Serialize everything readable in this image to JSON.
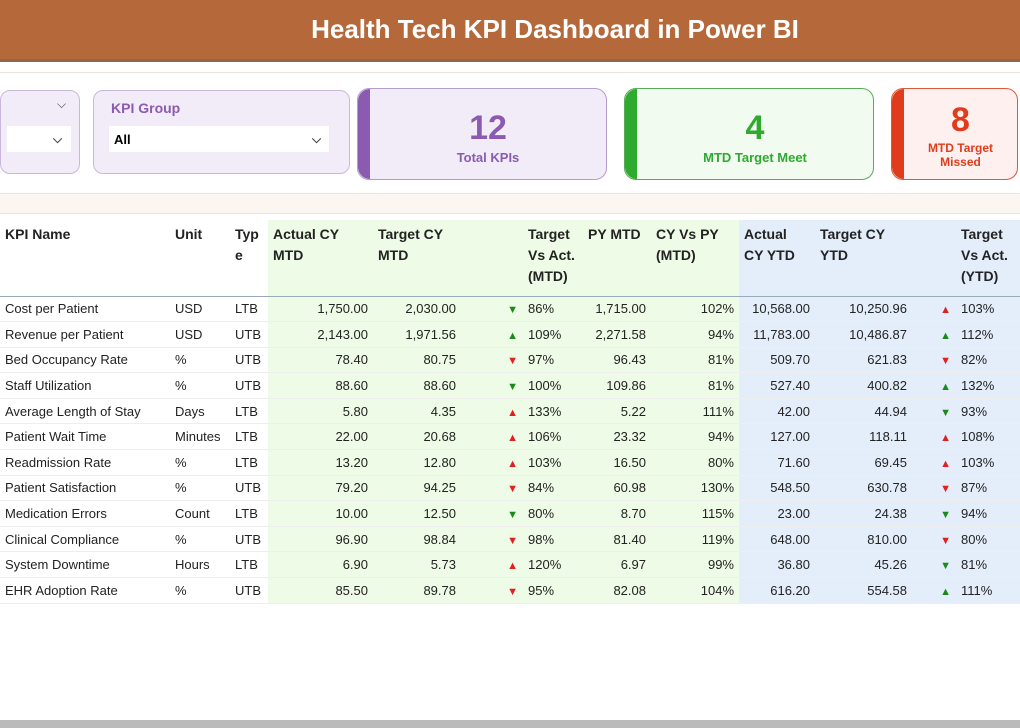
{
  "title": "Health Tech KPI Dashboard in Power BI",
  "slicers": [
    {
      "label": "",
      "value": ""
    },
    {
      "label": "KPI Group",
      "value": "All"
    }
  ],
  "cards": [
    {
      "value": "12",
      "caption": "Total KPIs",
      "color": "#8a5bb0",
      "bg": "#f2ebf8",
      "border": "#b49ccd"
    },
    {
      "value": "4",
      "caption": "MTD Target Meet",
      "color": "#2eaa2e",
      "bg": "#f1fbef",
      "border": "#5aaa5a"
    },
    {
      "value": "8",
      "caption": "MTD Target Missed",
      "color": "#e03c1c",
      "bg": "#fdf0ee",
      "border": "#e0583a"
    }
  ],
  "colors": {
    "up_good": "#1a8a1a",
    "bad": "#e02020"
  },
  "table": {
    "headers": [
      "KPI Name",
      "Unit",
      "Type",
      "Actual CY MTD",
      "Target CY MTD",
      "",
      "Target Vs Act. (MTD)",
      "PY MTD",
      "CY Vs PY (MTD)",
      "Actual CY YTD",
      "Target CY YTD",
      "",
      "Target Vs Act. (YTD)"
    ],
    "rows": [
      [
        "Cost per Patient",
        "USD",
        "LTB",
        "1,750.00",
        "2,030.00",
        "down",
        "green",
        "86%",
        "1,715.00",
        "102%",
        "10,568.00",
        "10,250.96",
        "up",
        "red",
        "103%"
      ],
      [
        "Revenue per Patient",
        "USD",
        "UTB",
        "2,143.00",
        "1,971.56",
        "up",
        "green",
        "109%",
        "2,271.58",
        "94%",
        "11,783.00",
        "10,486.87",
        "up",
        "green",
        "112%"
      ],
      [
        "Bed Occupancy Rate",
        "%",
        "UTB",
        "78.40",
        "80.75",
        "down",
        "red",
        "97%",
        "96.43",
        "81%",
        "509.70",
        "621.83",
        "down",
        "red",
        "82%"
      ],
      [
        "Staff Utilization",
        "%",
        "UTB",
        "88.60",
        "88.60",
        "down",
        "green",
        "100%",
        "109.86",
        "81%",
        "527.40",
        "400.82",
        "up",
        "green",
        "132%"
      ],
      [
        "Average Length of Stay",
        "Days",
        "LTB",
        "5.80",
        "4.35",
        "up",
        "red",
        "133%",
        "5.22",
        "111%",
        "42.00",
        "44.94",
        "down",
        "green",
        "93%"
      ],
      [
        "Patient Wait Time",
        "Minutes",
        "LTB",
        "22.00",
        "20.68",
        "up",
        "red",
        "106%",
        "23.32",
        "94%",
        "127.00",
        "118.11",
        "up",
        "red",
        "108%"
      ],
      [
        "Readmission Rate",
        "%",
        "LTB",
        "13.20",
        "12.80",
        "up",
        "red",
        "103%",
        "16.50",
        "80%",
        "71.60",
        "69.45",
        "up",
        "red",
        "103%"
      ],
      [
        "Patient Satisfaction",
        "%",
        "UTB",
        "79.20",
        "94.25",
        "down",
        "red",
        "84%",
        "60.98",
        "130%",
        "548.50",
        "630.78",
        "down",
        "red",
        "87%"
      ],
      [
        "Medication Errors",
        "Count",
        "LTB",
        "10.00",
        "12.50",
        "down",
        "green",
        "80%",
        "8.70",
        "115%",
        "23.00",
        "24.38",
        "down",
        "green",
        "94%"
      ],
      [
        "Clinical Compliance",
        "%",
        "UTB",
        "96.90",
        "98.84",
        "down",
        "red",
        "98%",
        "81.40",
        "119%",
        "648.00",
        "810.00",
        "down",
        "red",
        "80%"
      ],
      [
        "System Downtime",
        "Hours",
        "LTB",
        "6.90",
        "5.73",
        "up",
        "red",
        "120%",
        "6.97",
        "99%",
        "36.80",
        "45.26",
        "down",
        "green",
        "81%"
      ],
      [
        "EHR Adoption Rate",
        "%",
        "UTB",
        "85.50",
        "89.78",
        "down",
        "red",
        "95%",
        "82.08",
        "104%",
        "616.20",
        "554.58",
        "up",
        "green",
        "111%"
      ]
    ]
  }
}
